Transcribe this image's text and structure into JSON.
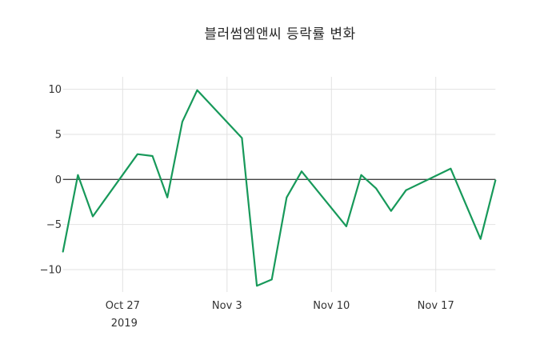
{
  "chart_data": {
    "type": "line",
    "title": "블러썸엠앤씨 등락률 변화",
    "series_name": "등락률",
    "x": [
      "2019-10-23",
      "2019-10-24",
      "2019-10-25",
      "2019-10-28",
      "2019-10-29",
      "2019-10-30",
      "2019-10-31",
      "2019-11-01",
      "2019-11-04",
      "2019-11-05",
      "2019-11-06",
      "2019-11-07",
      "2019-11-08",
      "2019-11-11",
      "2019-11-12",
      "2019-11-13",
      "2019-11-14",
      "2019-11-15",
      "2019-11-18",
      "2019-11-19",
      "2019-11-20",
      "2019-11-21"
    ],
    "y": [
      -8.0,
      0.5,
      -4.1,
      2.8,
      2.6,
      -2.0,
      6.4,
      9.9,
      4.6,
      -11.8,
      -11.1,
      -2.0,
      0.9,
      -5.2,
      0.5,
      -1.0,
      -3.5,
      -1.2,
      1.2,
      -2.7,
      -6.6,
      -0.1
    ],
    "x_ticks": [
      {
        "label": "Oct 27",
        "sublabel": "2019",
        "date": "2019-10-27"
      },
      {
        "label": "Nov 3",
        "date": "2019-11-03"
      },
      {
        "label": "Nov 10",
        "date": "2019-11-10"
      },
      {
        "label": "Nov 17",
        "date": "2019-11-17"
      }
    ],
    "y_ticks": [
      -10,
      -5,
      0,
      5,
      10
    ],
    "ylim": [
      -12.5,
      11.2
    ],
    "grid": true,
    "legend": false,
    "colors": {
      "line": "#17995a",
      "grid": "#e2e2e2",
      "zero_line": "#444444",
      "text": "#333333",
      "title": "#262626",
      "background": "#ffffff"
    }
  }
}
